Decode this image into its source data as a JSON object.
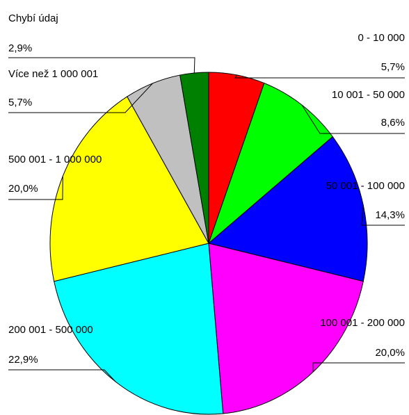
{
  "chart_data": {
    "type": "pie",
    "categories": [
      "0 - 10 000",
      "10 001 - 50 000",
      "50 001 - 100 000",
      "100 001 - 200 000",
      "200 001 - 500 000",
      "500 001 - 1 000 000",
      "Více než 1 000 001",
      "Chybí údaj"
    ],
    "values": [
      5.7,
      8.6,
      14.3,
      20.0,
      22.9,
      20.0,
      5.7,
      2.9
    ],
    "value_labels": [
      "5,7%",
      "8,6%",
      "14,3%",
      "20,0%",
      "22,9%",
      "20,0%",
      "5,7%",
      "2,9%"
    ],
    "colors": [
      "#ff0000",
      "#00ff00",
      "#0000ff",
      "#ff00ff",
      "#00ffff",
      "#ffff00",
      "#c0c0c0",
      "#008000"
    ]
  }
}
